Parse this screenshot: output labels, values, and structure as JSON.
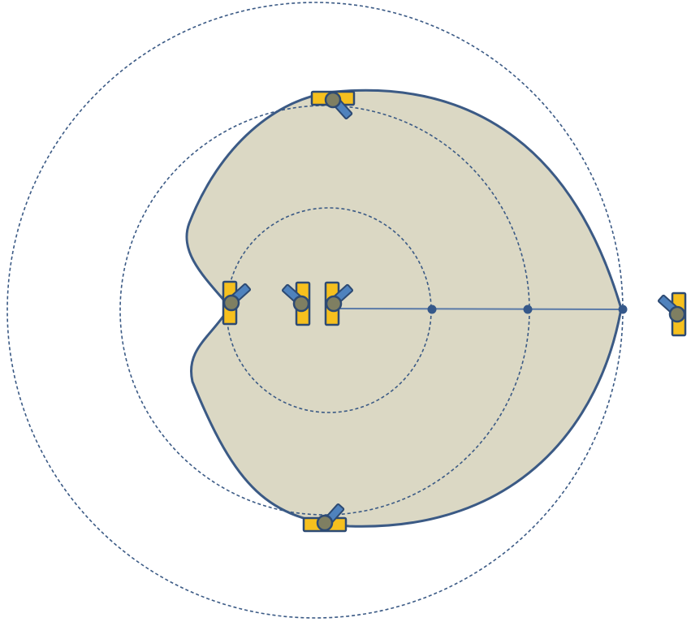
{
  "colors": {
    "region_fill": "#dbd8c4",
    "region_stroke": "#3b5a85",
    "orbit_stroke": "#3b5a85",
    "axis_line": "#5a7aa8",
    "node_fill": "#35588a",
    "satellite_panel": "#f6c01e",
    "satellite_outline": "#2d4a73",
    "satellite_body": "#7f7f62",
    "satellite_antenna": "#4f82bd",
    "background": "#ffffff"
  },
  "icons": {
    "satellite": "satellite-icon",
    "node": "node-dot"
  },
  "orbits": [
    {
      "name": "inner-orbit"
    },
    {
      "name": "middle-orbit"
    },
    {
      "name": "outer-orbit"
    }
  ],
  "satellites": [
    {
      "name": "satellite-top"
    },
    {
      "name": "satellite-bottom"
    },
    {
      "name": "satellite-left"
    },
    {
      "name": "satellite-center-left"
    },
    {
      "name": "satellite-center"
    },
    {
      "name": "satellite-right-outside"
    }
  ],
  "nodes": [
    {
      "name": "node-inner-orbit"
    },
    {
      "name": "node-middle-orbit"
    },
    {
      "name": "node-region-edge"
    }
  ]
}
